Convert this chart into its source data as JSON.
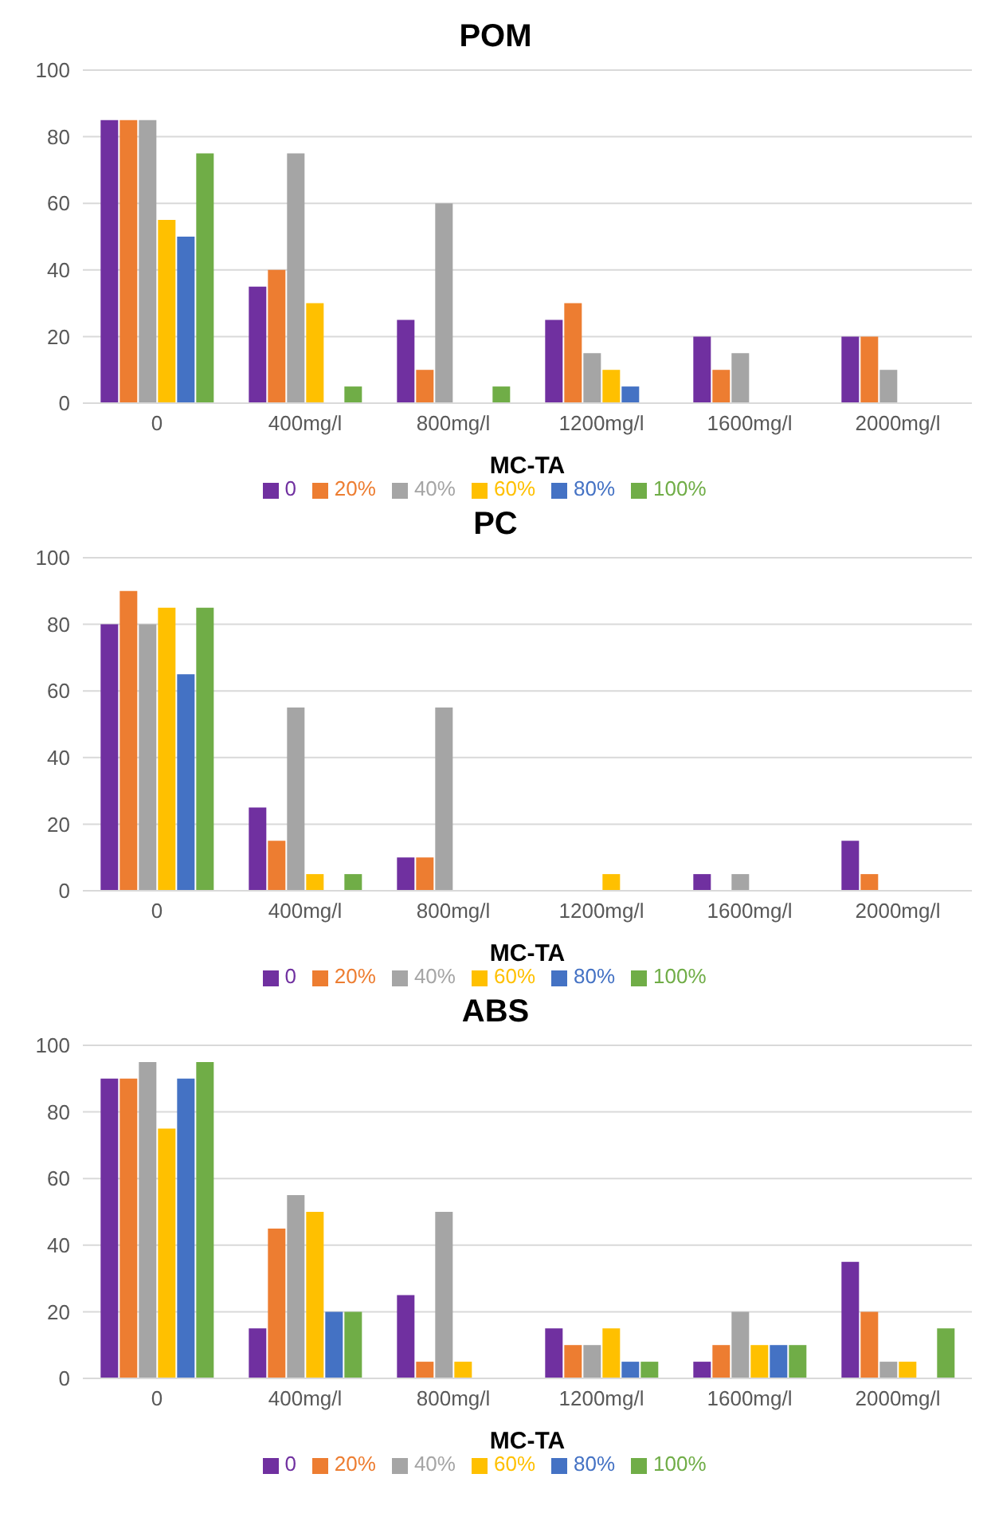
{
  "chart_data": [
    {
      "type": "bar",
      "title": "POM",
      "xlabel": "MC-TA",
      "categories": [
        "0",
        "400mg/l",
        "800mg/l",
        "1200mg/l",
        "1600mg/l",
        "2000mg/l"
      ],
      "ylim": [
        0,
        100
      ],
      "yticks": [
        0,
        20,
        40,
        60,
        80,
        100
      ],
      "grid": "y",
      "legend": "bottom",
      "series": [
        {
          "name": "0",
          "color": "#7030a0",
          "values": [
            85,
            35,
            25,
            25,
            20,
            20
          ]
        },
        {
          "name": "20%",
          "color": "#ed7d31",
          "values": [
            85,
            40,
            10,
            30,
            10,
            20
          ]
        },
        {
          "name": "40%",
          "color": "#a5a5a5",
          "values": [
            85,
            75,
            60,
            15,
            15,
            10
          ]
        },
        {
          "name": "60%",
          "color": "#ffc000",
          "values": [
            55,
            30,
            0,
            10,
            0,
            0
          ]
        },
        {
          "name": "80%",
          "color": "#4472c4",
          "values": [
            50,
            0,
            0,
            5,
            0,
            0
          ]
        },
        {
          "name": "100%",
          "color": "#70ad47",
          "values": [
            75,
            5,
            5,
            0,
            0,
            0
          ]
        }
      ]
    },
    {
      "type": "bar",
      "title": "PC",
      "xlabel": "MC-TA",
      "categories": [
        "0",
        "400mg/l",
        "800mg/l",
        "1200mg/l",
        "1600mg/l",
        "2000mg/l"
      ],
      "ylim": [
        0,
        100
      ],
      "yticks": [
        0,
        20,
        40,
        60,
        80,
        100
      ],
      "grid": "y",
      "legend": "bottom",
      "series": [
        {
          "name": "0",
          "color": "#7030a0",
          "values": [
            80,
            25,
            10,
            0,
            5,
            15
          ]
        },
        {
          "name": "20%",
          "color": "#ed7d31",
          "values": [
            90,
            15,
            10,
            0,
            0,
            5
          ]
        },
        {
          "name": "40%",
          "color": "#a5a5a5",
          "values": [
            80,
            55,
            55,
            0,
            5,
            0
          ]
        },
        {
          "name": "60%",
          "color": "#ffc000",
          "values": [
            85,
            5,
            0,
            5,
            0,
            0
          ]
        },
        {
          "name": "80%",
          "color": "#4472c4",
          "values": [
            65,
            0,
            0,
            0,
            0,
            0
          ]
        },
        {
          "name": "100%",
          "color": "#70ad47",
          "values": [
            85,
            5,
            0,
            0,
            0,
            0
          ]
        }
      ]
    },
    {
      "type": "bar",
      "title": "ABS",
      "xlabel": "MC-TA",
      "categories": [
        "0",
        "400mg/l",
        "800mg/l",
        "1200mg/l",
        "1600mg/l",
        "2000mg/l"
      ],
      "ylim": [
        0,
        100
      ],
      "yticks": [
        0,
        20,
        40,
        60,
        80,
        100
      ],
      "grid": "y",
      "legend": "bottom",
      "series": [
        {
          "name": "0",
          "color": "#7030a0",
          "values": [
            90,
            15,
            25,
            15,
            5,
            35
          ]
        },
        {
          "name": "20%",
          "color": "#ed7d31",
          "values": [
            90,
            45,
            5,
            10,
            10,
            20
          ]
        },
        {
          "name": "40%",
          "color": "#a5a5a5",
          "values": [
            95,
            55,
            50,
            10,
            20,
            5
          ]
        },
        {
          "name": "60%",
          "color": "#ffc000",
          "values": [
            75,
            50,
            5,
            15,
            10,
            5
          ]
        },
        {
          "name": "80%",
          "color": "#4472c4",
          "values": [
            90,
            20,
            0,
            5,
            10,
            0
          ]
        },
        {
          "name": "100%",
          "color": "#70ad47",
          "values": [
            95,
            20,
            0,
            5,
            10,
            15
          ]
        }
      ]
    }
  ]
}
